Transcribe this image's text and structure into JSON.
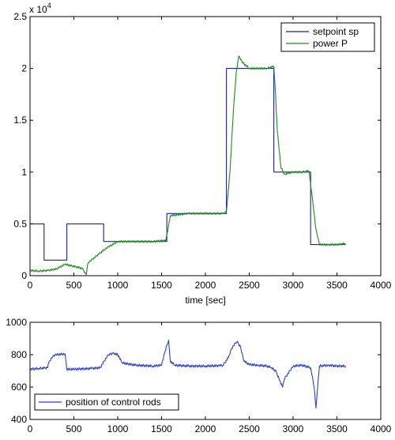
{
  "chart_data": [
    {
      "type": "line",
      "xlabel": "time [sec]",
      "ylabel": "",
      "y_exponent": "x 10",
      "y_exponent_power": "4",
      "xlim": [
        0,
        4000
      ],
      "ylim": [
        0,
        25000
      ],
      "x_ticks": [
        0,
        500,
        1000,
        1500,
        2000,
        2500,
        3000,
        3500,
        4000
      ],
      "x_tick_labels": [
        "0",
        "500",
        "1000",
        "1500",
        "2000",
        "2500",
        "3000",
        "3500",
        "4000"
      ],
      "y_ticks": [
        0,
        5000,
        10000,
        15000,
        20000,
        25000
      ],
      "y_tick_labels": [
        "0",
        "0.5",
        "1",
        "1.5",
        "2",
        "2.5"
      ],
      "grid": false,
      "legend_position": "top-right",
      "series": [
        {
          "name": "setpoint sp",
          "color": "#1f1f9e",
          "x": [
            0,
            160,
            160,
            420,
            420,
            840,
            840,
            1560,
            1560,
            2240,
            2240,
            2780,
            2780,
            3200,
            3200,
            3600
          ],
          "y": [
            5000,
            5000,
            1500,
            1500,
            5000,
            5000,
            3300,
            3300,
            6000,
            6000,
            20000,
            20000,
            10000,
            10000,
            3000,
            3000
          ]
        },
        {
          "name": "power P",
          "color": "#1e8a1e",
          "x": [
            0,
            100,
            200,
            300,
            400,
            500,
            600,
            640,
            660,
            700,
            800,
            860,
            900,
            1000,
            1200,
            1400,
            1550,
            1600,
            1800,
            2000,
            2200,
            2240,
            2280,
            2320,
            2350,
            2380,
            2420,
            2500,
            2600,
            2700,
            2780,
            2800,
            2820,
            2860,
            2900,
            3000,
            3100,
            3180,
            3220,
            3260,
            3300,
            3400,
            3500,
            3600
          ],
          "y": [
            500,
            450,
            500,
            650,
            1100,
            900,
            700,
            100,
            1200,
            1500,
            2200,
            2600,
            2800,
            3300,
            3300,
            3300,
            3400,
            5800,
            6000,
            6000,
            6000,
            6200,
            10000,
            16000,
            19500,
            21200,
            20600,
            20000,
            20000,
            20000,
            20200,
            17500,
            14000,
            10500,
            9800,
            10000,
            10000,
            10100,
            7500,
            4500,
            3000,
            3000,
            3000,
            3100
          ]
        }
      ]
    },
    {
      "type": "line",
      "xlabel": "",
      "ylabel": "",
      "xlim": [
        0,
        4000
      ],
      "ylim": [
        400,
        1000
      ],
      "x_ticks": [
        0,
        500,
        1000,
        1500,
        2000,
        2500,
        3000,
        3500,
        4000
      ],
      "x_tick_labels": [
        "0",
        "500",
        "1000",
        "1500",
        "2000",
        "2500",
        "3000",
        "3500",
        "4000"
      ],
      "y_ticks": [
        400,
        600,
        800,
        1000
      ],
      "y_tick_labels": [
        "400",
        "600",
        "800",
        "1000"
      ],
      "grid": false,
      "legend_position": "bottom-left",
      "series": [
        {
          "name": "position of control rods",
          "color": "#2a3fd6",
          "x": [
            0,
            100,
            200,
            220,
            260,
            300,
            400,
            420,
            500,
            700,
            800,
            880,
            900,
            950,
            1000,
            1050,
            1200,
            1400,
            1500,
            1540,
            1580,
            1600,
            1650,
            1800,
            2000,
            2150,
            2200,
            2260,
            2300,
            2340,
            2360,
            2400,
            2440,
            2500,
            2600,
            2700,
            2750,
            2800,
            2850,
            2880,
            2900,
            3000,
            3100,
            3200,
            3240,
            3260,
            3280,
            3300,
            3400,
            3500,
            3600
          ],
          "y": [
            710,
            715,
            720,
            760,
            790,
            800,
            805,
            710,
            710,
            715,
            720,
            790,
            800,
            810,
            800,
            750,
            735,
            730,
            735,
            820,
            890,
            760,
            735,
            730,
            730,
            732,
            735,
            780,
            840,
            870,
            880,
            850,
            760,
            740,
            735,
            730,
            720,
            700,
            640,
            600,
            650,
            730,
            735,
            720,
            600,
            470,
            600,
            730,
            735,
            730,
            730
          ]
        }
      ]
    }
  ]
}
